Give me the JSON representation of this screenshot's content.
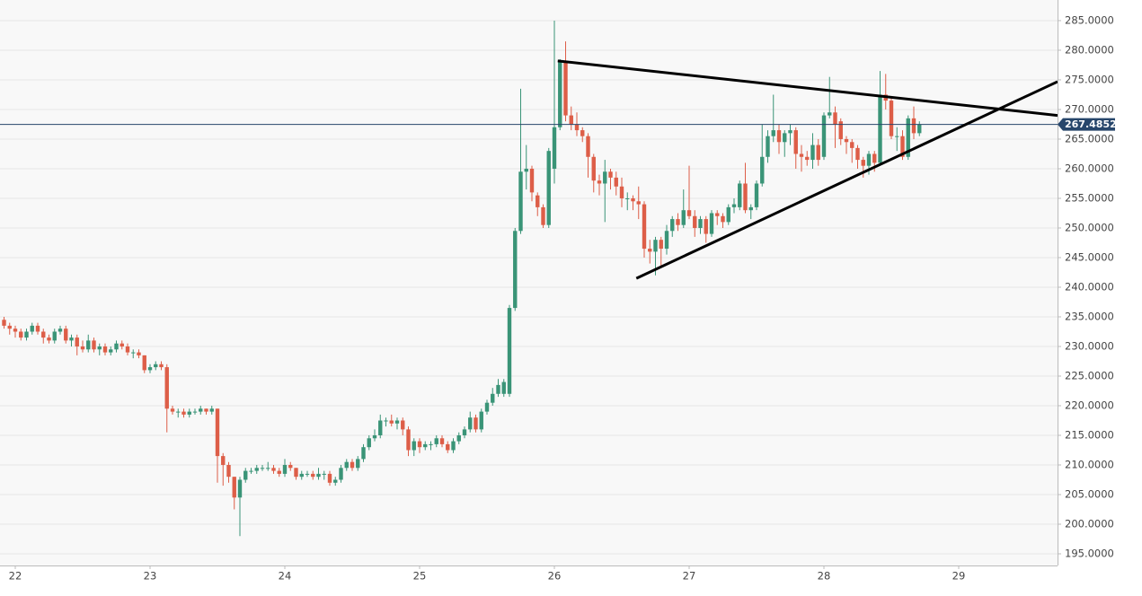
{
  "chart_data": {
    "type": "candlestick",
    "up_color": "#3a9477",
    "down_color": "#dd5e48",
    "grid": true,
    "xlim": [
      525.28,
      713.6
    ],
    "xticks": [
      {
        "value": 528,
        "label": "22"
      },
      {
        "value": 552,
        "label": "23"
      },
      {
        "value": 576,
        "label": "24"
      },
      {
        "value": 600,
        "label": "25"
      },
      {
        "value": 624,
        "label": "26"
      },
      {
        "value": 648,
        "label": "27"
      },
      {
        "value": 672,
        "label": "28"
      },
      {
        "value": 696,
        "label": "29"
      }
    ],
    "ylim": [
      193.03,
      288.48
    ],
    "yticks": [
      {
        "value": 195,
        "label": "195.0000"
      },
      {
        "value": 200,
        "label": "200.0000"
      },
      {
        "value": 205,
        "label": "205.0000"
      },
      {
        "value": 210,
        "label": "210.0000"
      },
      {
        "value": 215,
        "label": "215.0000"
      },
      {
        "value": 220,
        "label": "220.0000"
      },
      {
        "value": 225,
        "label": "225.0000"
      },
      {
        "value": 230,
        "label": "230.0000"
      },
      {
        "value": 235,
        "label": "235.0000"
      },
      {
        "value": 240,
        "label": "240.0000"
      },
      {
        "value": 245,
        "label": "245.0000"
      },
      {
        "value": 250,
        "label": "250.0000"
      },
      {
        "value": 255,
        "label": "255.0000"
      },
      {
        "value": 260,
        "label": "260.0000"
      },
      {
        "value": 265,
        "label": "265.0000"
      },
      {
        "value": 270,
        "label": "270.0000"
      },
      {
        "value": 275,
        "label": "275.0000"
      },
      {
        "value": 280,
        "label": "280.0000"
      },
      {
        "value": 285,
        "label": "285.0000"
      }
    ],
    "last_price": 267.48526,
    "last_price_color": "#27466b",
    "trendlines": [
      {
        "x": [
          624.6,
          713.6
        ],
        "y": [
          278.2,
          269.0
        ]
      },
      {
        "x": [
          638.6,
          713.6
        ],
        "y": [
          241.5,
          274.7
        ]
      }
    ],
    "x": [
      526,
      527,
      528,
      529,
      530,
      531,
      532,
      533,
      534,
      535,
      536,
      537,
      538,
      539,
      540,
      541,
      542,
      543,
      544,
      545,
      546,
      547,
      548,
      549,
      550,
      551,
      552,
      553,
      554,
      555,
      556,
      557,
      558,
      559,
      560,
      561,
      562,
      563,
      564,
      565,
      566,
      567,
      568,
      569,
      570,
      571,
      572,
      573,
      574,
      575,
      576,
      577,
      578,
      579,
      580,
      581,
      582,
      583,
      584,
      585,
      586,
      587,
      588,
      589,
      590,
      591,
      592,
      593,
      594,
      595,
      596,
      597,
      598,
      599,
      600,
      601,
      602,
      603,
      604,
      605,
      606,
      607,
      608,
      609,
      610,
      611,
      612,
      613,
      614,
      615,
      616,
      617,
      618,
      619,
      620,
      621,
      622,
      623,
      624,
      625,
      626,
      627,
      628,
      629,
      630,
      631,
      632,
      633,
      634,
      635,
      636,
      637,
      638,
      639,
      640,
      641,
      642,
      643,
      644,
      645,
      646,
      647,
      648,
      649,
      650,
      651,
      652,
      653,
      654,
      655,
      656,
      657,
      658,
      659,
      660,
      661,
      662,
      663,
      664,
      665,
      666,
      667,
      668,
      669,
      670,
      671,
      672,
      673,
      674,
      675,
      676,
      677,
      678,
      679,
      680,
      681,
      682,
      683,
      684,
      685,
      686,
      687,
      688,
      689
    ],
    "open": [
      234.5,
      233.5,
      233,
      232.5,
      231.5,
      232.5,
      233.5,
      232.5,
      231.5,
      231,
      232.5,
      233,
      231,
      231.5,
      230,
      229.5,
      231,
      229.5,
      230,
      229,
      229.5,
      230.5,
      230,
      229,
      229,
      228.5,
      226,
      226.5,
      227,
      226.5,
      219.5,
      219,
      219,
      218.5,
      219,
      219,
      219.5,
      219,
      219.5,
      211.5,
      210,
      208,
      204.5,
      207.5,
      209,
      209,
      209.5,
      209.5,
      209.5,
      209,
      208.5,
      210,
      209.5,
      208,
      208.5,
      208.5,
      208,
      208.5,
      208.5,
      207,
      207.5,
      209.5,
      210.5,
      209.5,
      211,
      213,
      214.5,
      215,
      217.5,
      217.5,
      217,
      217.5,
      216,
      212.5,
      214,
      213,
      213.5,
      213.5,
      214.5,
      213.5,
      212.5,
      214,
      215,
      216,
      218,
      216,
      219,
      220.5,
      222,
      222,
      222,
      236.5,
      249.5,
      259.5,
      260,
      255.5,
      253.5,
      250.5,
      260,
      267,
      278,
      269,
      267.5,
      266.5,
      265.5,
      262,
      258,
      257.5,
      259.5,
      258.5,
      257,
      255,
      255,
      254.5,
      254,
      246.5,
      246,
      248,
      246.5,
      249.5,
      251.5,
      250.5,
      253,
      252,
      250,
      251.5,
      249,
      252.5,
      252,
      251,
      253.5,
      253.5,
      257.5,
      253,
      253.5,
      257.5,
      262,
      265.5,
      266.5,
      264.5,
      266,
      266.5,
      262.5,
      262,
      261.5,
      264,
      262,
      269,
      269.5,
      268,
      265,
      264.5,
      263.5,
      261.5,
      260.5,
      262.5,
      261,
      272.5,
      271.5,
      265.5,
      265.5,
      262,
      268.5,
      266
    ],
    "high": [
      235,
      234,
      233.5,
      233,
      233,
      234,
      234,
      233,
      232,
      233,
      233.5,
      233.5,
      232,
      232,
      231,
      232,
      231.5,
      230.5,
      230.5,
      230,
      231,
      231,
      230.5,
      229.5,
      229.5,
      228.5,
      227,
      227.5,
      227.5,
      227,
      220,
      219.5,
      219.5,
      219.5,
      219.5,
      220,
      219.5,
      220,
      219.5,
      212,
      210.5,
      208,
      208,
      209.5,
      209.5,
      210,
      210,
      210.5,
      210,
      209.5,
      211,
      210.5,
      209.5,
      209,
      209,
      209,
      209.5,
      209,
      209,
      208,
      210,
      211,
      211,
      211.5,
      213.5,
      215,
      216,
      218.5,
      218,
      218.5,
      218,
      218,
      216.5,
      214.5,
      214.5,
      214,
      214,
      215,
      215,
      214,
      214.5,
      215.5,
      216.5,
      219,
      218.5,
      219.5,
      221,
      223,
      224.5,
      224.5,
      237,
      250,
      273.5,
      264,
      260.5,
      256,
      254,
      263.5,
      285,
      278.5,
      281.5,
      270.5,
      269.5,
      267,
      266,
      262.5,
      259,
      261.5,
      260,
      259.5,
      258.5,
      256,
      255.5,
      257,
      254.5,
      248,
      248.5,
      248.5,
      250.5,
      252,
      252.5,
      256.5,
      260.5,
      253,
      252,
      252,
      253,
      253,
      252.5,
      254,
      255,
      258,
      261,
      254,
      258,
      267.5,
      266.5,
      272.5,
      267.5,
      266.5,
      267.5,
      267,
      264,
      263,
      266,
      265,
      269.5,
      275.5,
      270.5,
      268.5,
      265.5,
      265,
      264,
      262,
      263,
      263,
      276.5,
      276,
      272,
      267,
      266.5,
      269,
      270.5,
      268
    ],
    "low": [
      233,
      232,
      231.5,
      231,
      231,
      232,
      232,
      230.5,
      230.5,
      230.5,
      232,
      230.5,
      230,
      228.5,
      229,
      229,
      229,
      228.5,
      228.5,
      228.5,
      229,
      229.5,
      228.5,
      228,
      228,
      225.5,
      225.5,
      226,
      226,
      215.5,
      218.5,
      218,
      218,
      218,
      218.5,
      218.5,
      218.5,
      218.5,
      207,
      206.5,
      207,
      202.5,
      198,
      207,
      208.5,
      208.5,
      209,
      209,
      208.5,
      208,
      208,
      209,
      207.5,
      207.5,
      208,
      207.5,
      207.5,
      207.5,
      206.5,
      206.5,
      207,
      209,
      209,
      209,
      210.5,
      212.5,
      214,
      214.5,
      216.5,
      216.5,
      216,
      215,
      211.5,
      211.5,
      212,
      212.5,
      212.5,
      213,
      213,
      212,
      212,
      213.5,
      214.5,
      215.5,
      215.5,
      215.5,
      218.5,
      220,
      221.5,
      221.5,
      221.5,
      236,
      249,
      256.5,
      254.5,
      252,
      250,
      250,
      257.5,
      266.5,
      268,
      266.5,
      265.5,
      264.5,
      258.5,
      256,
      255.5,
      251,
      256.5,
      255.5,
      253.5,
      253,
      253,
      251.5,
      245,
      244,
      242,
      243.5,
      245.5,
      248.5,
      249.5,
      250,
      251.5,
      248.5,
      249,
      247.5,
      248.5,
      250.5,
      250,
      250.5,
      252.5,
      253,
      252.5,
      251.5,
      253,
      257,
      261,
      264.5,
      262.5,
      262,
      264,
      260,
      259.5,
      260.5,
      260,
      260.5,
      261.5,
      268.5,
      263.5,
      264,
      262.5,
      261,
      260,
      258.5,
      259,
      259.5,
      260.5,
      270,
      265,
      263,
      261.5,
      261.5,
      265,
      265.5
    ],
    "close": [
      233.5,
      233,
      232.5,
      231.5,
      232.5,
      233.5,
      232.5,
      231.5,
      231,
      232.5,
      233,
      231,
      231.5,
      230,
      229.5,
      231,
      229.5,
      230,
      229,
      229.5,
      230.5,
      230,
      229,
      229,
      228.5,
      226,
      226.5,
      227,
      226.5,
      219.5,
      219,
      219,
      218.5,
      219,
      219,
      219.5,
      219,
      219.5,
      211.5,
      210,
      208,
      204.5,
      207.5,
      209,
      209,
      209.5,
      209.5,
      209.5,
      209,
      208.5,
      210,
      209.5,
      208,
      208.5,
      208.5,
      208,
      208.5,
      208.5,
      207,
      207.5,
      209.5,
      210.5,
      209.5,
      211,
      213,
      214.5,
      215,
      217.5,
      217.5,
      217,
      217.5,
      216,
      212.5,
      214,
      213,
      213.5,
      213.5,
      214.5,
      213.5,
      212.5,
      214,
      215,
      216,
      218,
      216,
      219,
      220.5,
      222,
      223.5,
      224,
      236.5,
      249.5,
      259.5,
      260,
      256,
      253.5,
      250.5,
      263,
      267,
      278,
      269,
      267.5,
      266.5,
      265.5,
      262,
      258,
      257.5,
      259.5,
      258.5,
      257,
      255,
      255,
      254.5,
      254,
      246.5,
      246,
      248,
      246.5,
      249.5,
      251.5,
      250.5,
      253,
      252,
      250,
      251.5,
      249,
      252.5,
      252,
      251,
      253.5,
      254,
      257.5,
      253,
      253.5,
      257.5,
      262,
      265.5,
      266.5,
      264.5,
      266,
      266.5,
      262.5,
      262,
      261.5,
      264,
      261.5,
      269,
      269.5,
      267.5,
      265,
      264.5,
      263.5,
      261.5,
      260.5,
      262.5,
      261,
      272.5,
      271.5,
      265.5,
      265.5,
      262,
      268.5,
      266,
      267.48526
    ]
  }
}
